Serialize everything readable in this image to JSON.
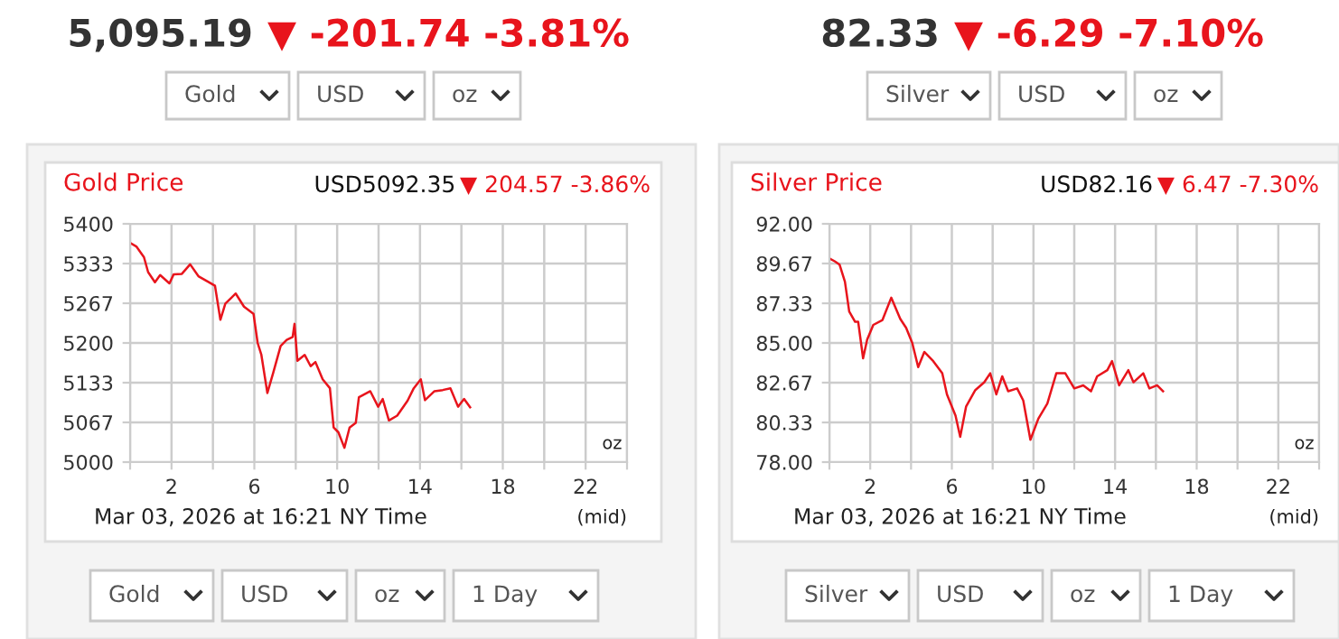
{
  "chart_data": [
    {
      "type": "line",
      "title": "Gold Price",
      "annotations": [
        "5,095.19",
        "▼ -201.74 -3.81%",
        "Gold",
        "USD",
        "oz",
        "USD5092.35",
        "▼ 204.57 -3.86%",
        "Mar 03, 2026 at 16:21 NY Time",
        "(mid)",
        "oz",
        "Gold",
        "USD",
        "oz",
        "1 Day"
      ],
      "series": [
        {
          "color": "#e8141c",
          "x": [
            0,
            0.3,
            0.67,
            0.87,
            1.2,
            1.45,
            1.9,
            2.1,
            2.5,
            2.9,
            3.3,
            3.8,
            4.1,
            4.36,
            4.6,
            5.1,
            5.5,
            5.96,
            6.16,
            6.34,
            6.63,
            6.92,
            7.27,
            7.56,
            7.85,
            7.94,
            8.08,
            8.43,
            8.72,
            8.95,
            9.3,
            9.65,
            9.83,
            10.06,
            10.35,
            10.6,
            10.9,
            11.05,
            11.6,
            11.98,
            12.2,
            12.5,
            12.9,
            13.4,
            13.7,
            14.04,
            14.24,
            14.7,
            15.1,
            15.47,
            15.84,
            16.13,
            16.42
          ],
          "values": [
            5368,
            5362,
            5344,
            5319,
            5302,
            5314,
            5300,
            5315,
            5316,
            5332,
            5312,
            5302,
            5296,
            5239,
            5266,
            5283,
            5261,
            5249,
            5200,
            5180,
            5116,
            5151,
            5195,
            5205,
            5210,
            5232,
            5170,
            5180,
            5161,
            5168,
            5139,
            5124,
            5058,
            5050,
            5024,
            5058,
            5066,
            5109,
            5119,
            5093,
            5106,
            5070,
            5078,
            5103,
            5124,
            5139,
            5104,
            5119,
            5121,
            5124,
            5093,
            5106,
            5092
          ]
        }
      ],
      "xlim": [
        0,
        24
      ],
      "xticks": [
        {
          "value": 0,
          "label": null
        },
        2,
        {
          "value": 4,
          "label": null
        },
        6,
        {
          "value": 8,
          "label": null
        },
        10,
        {
          "value": 12,
          "label": null
        },
        14,
        {
          "value": 16,
          "label": null
        },
        18,
        {
          "value": 20,
          "label": null
        },
        22,
        {
          "value": 24,
          "label": null
        }
      ],
      "ylim": [
        5000,
        5400
      ],
      "yticks": [
        {
          "value": 5000,
          "label": "5000"
        },
        {
          "value": 5066.67,
          "label": "5067"
        },
        {
          "value": 5133.33,
          "label": "5133"
        },
        {
          "value": 5200,
          "label": "5200"
        },
        {
          "value": 5266.67,
          "label": "5267"
        },
        {
          "value": 5333.33,
          "label": "5333"
        },
        {
          "value": 5400,
          "label": "5400"
        }
      ],
      "grid": true,
      "line_style": "solid",
      "marker": "none"
    },
    {
      "type": "line",
      "title": "Silver Price",
      "annotations": [
        "82.33",
        "▼ -6.29 -7.10%",
        "Silver",
        "USD",
        "oz",
        "USD82.16",
        "▼ 6.47 -7.30%",
        "Mar 03, 2026 at 16:21 NY Time",
        "(mid)",
        "oz",
        "Silver",
        "USD",
        "oz",
        "1 Day"
      ],
      "series": [
        {
          "color": "#e8141c",
          "x": [
            0,
            0.26,
            0.5,
            0.76,
            0.97,
            1.26,
            1.41,
            1.65,
            1.85,
            2.15,
            2.6,
            3.03,
            3.47,
            3.76,
            4.06,
            4.35,
            4.65,
            5.09,
            5.53,
            5.76,
            6.18,
            6.41,
            6.7,
            7.15,
            7.59,
            7.88,
            8.18,
            8.47,
            8.76,
            9.2,
            9.5,
            9.85,
            10.24,
            10.68,
            11.12,
            11.56,
            12,
            12.44,
            12.82,
            13.12,
            13.62,
            13.85,
            14.2,
            14.65,
            14.9,
            15.38,
            15.68,
            16.06,
            16.35
          ],
          "values": [
            89.97,
            89.8,
            89.6,
            88.6,
            86.85,
            86.24,
            86.24,
            84.1,
            85.2,
            86.06,
            86.35,
            87.66,
            86.42,
            85.89,
            85.0,
            83.58,
            84.47,
            83.93,
            83.22,
            81.98,
            80.73,
            79.49,
            81.27,
            82.23,
            82.69,
            83.22,
            81.98,
            83.04,
            82.16,
            82.33,
            81.62,
            79.31,
            80.55,
            81.44,
            83.22,
            83.22,
            82.33,
            82.51,
            82.16,
            83.04,
            83.4,
            83.93,
            82.51,
            83.4,
            82.69,
            83.22,
            82.33,
            82.51,
            82.16
          ]
        }
      ],
      "xlim": [
        0,
        24
      ],
      "xticks": [
        {
          "value": 0,
          "label": null
        },
        2,
        {
          "value": 4,
          "label": null
        },
        6,
        {
          "value": 8,
          "label": null
        },
        10,
        {
          "value": 12,
          "label": null
        },
        14,
        {
          "value": 16,
          "label": null
        },
        18,
        {
          "value": 20,
          "label": null
        },
        22,
        {
          "value": 24,
          "label": null
        }
      ],
      "ylim": [
        78,
        92
      ],
      "yticks": [
        {
          "value": 78,
          "label": "78.00"
        },
        {
          "value": 80.33,
          "label": "80.33"
        },
        {
          "value": 82.67,
          "label": "82.67"
        },
        {
          "value": 85,
          "label": "85.00"
        },
        {
          "value": 87.33,
          "label": "87.33"
        },
        {
          "value": 89.67,
          "label": "89.67"
        },
        {
          "value": 92,
          "label": "92.00"
        }
      ],
      "grid": true,
      "line_style": "solid",
      "marker": "none"
    }
  ]
}
